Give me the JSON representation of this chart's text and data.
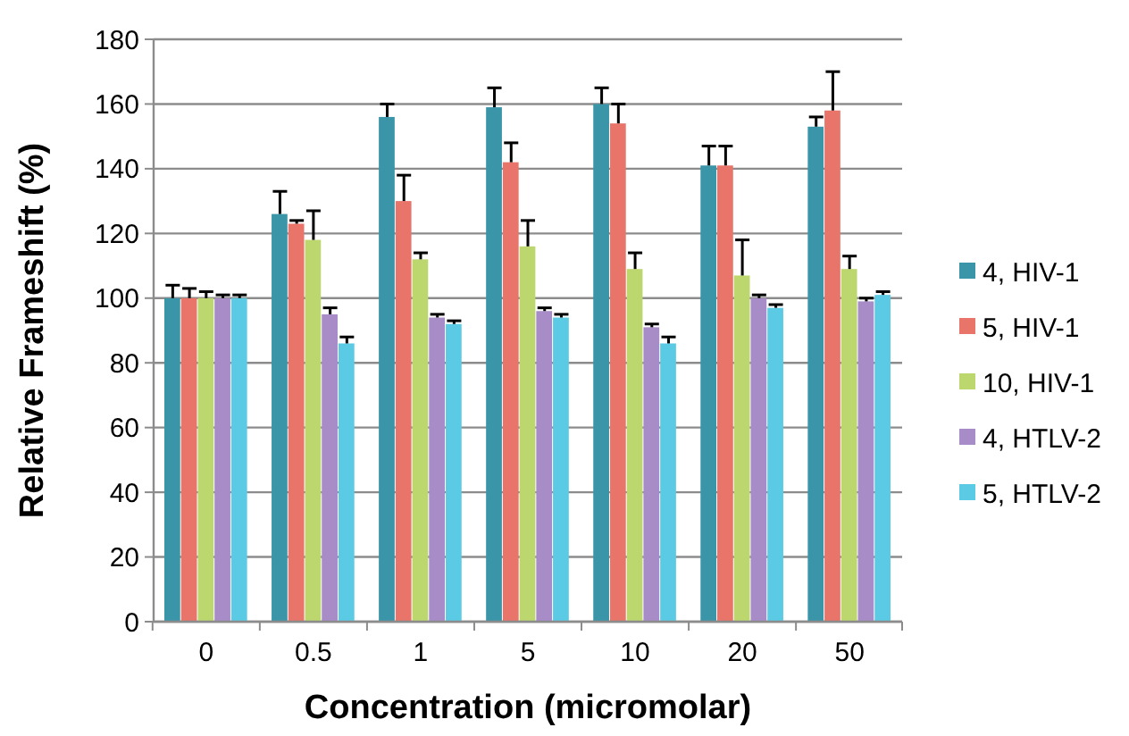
{
  "chart_data": {
    "type": "bar",
    "xlabel": "Concentration (micromolar)",
    "ylabel": "Relative Frameshift (%)",
    "categories": [
      "0",
      "0.5",
      "1",
      "5",
      "10",
      "20",
      "50"
    ],
    "series": [
      {
        "name": "4, HIV-1",
        "color": "#3a95a8",
        "values": [
          100,
          126,
          156,
          159,
          160,
          141,
          153
        ],
        "errors": [
          [
            100,
            104
          ],
          [
            126,
            133
          ],
          [
            156,
            160
          ],
          [
            159,
            165
          ],
          [
            160,
            165
          ],
          [
            141,
            147
          ],
          [
            153,
            156
          ]
        ]
      },
      {
        "name": "5, HIV-1",
        "color": "#e8746a",
        "values": [
          100,
          123,
          130,
          142,
          154,
          141,
          158
        ],
        "errors": [
          [
            100,
            103
          ],
          [
            123,
            124
          ],
          [
            130,
            138
          ],
          [
            142,
            148
          ],
          [
            154,
            160
          ],
          [
            141,
            147
          ],
          [
            158,
            170
          ]
        ]
      },
      {
        "name": "10, HIV-1",
        "color": "#bcd76e",
        "values": [
          100,
          118,
          112,
          116,
          109,
          107,
          109
        ],
        "errors": [
          [
            100,
            102
          ],
          [
            118,
            127
          ],
          [
            112,
            114
          ],
          [
            116,
            124
          ],
          [
            109,
            114
          ],
          [
            107,
            118
          ],
          [
            109,
            113
          ]
        ]
      },
      {
        "name": "4, HTLV-2",
        "color": "#a88cc8",
        "values": [
          100,
          95,
          94,
          96,
          91,
          100,
          99
        ],
        "errors": [
          [
            100,
            101
          ],
          [
            95,
            97
          ],
          [
            94,
            95
          ],
          [
            96,
            97
          ],
          [
            91,
            92
          ],
          [
            100,
            101
          ],
          [
            99,
            100
          ]
        ]
      },
      {
        "name": "5, HTLV-2",
        "color": "#5bcbe5",
        "values": [
          100,
          86,
          92,
          94,
          86,
          97,
          101
        ],
        "errors": [
          [
            100,
            101
          ],
          [
            86,
            88
          ],
          [
            92,
            93
          ],
          [
            94,
            95
          ],
          [
            86,
            88
          ],
          [
            97,
            98
          ],
          [
            101,
            102
          ]
        ]
      }
    ],
    "ylim": [
      0,
      180
    ],
    "yticks": [
      0,
      20,
      40,
      60,
      80,
      100,
      120,
      140,
      160,
      180
    ],
    "grid": "y",
    "legend": "right"
  }
}
